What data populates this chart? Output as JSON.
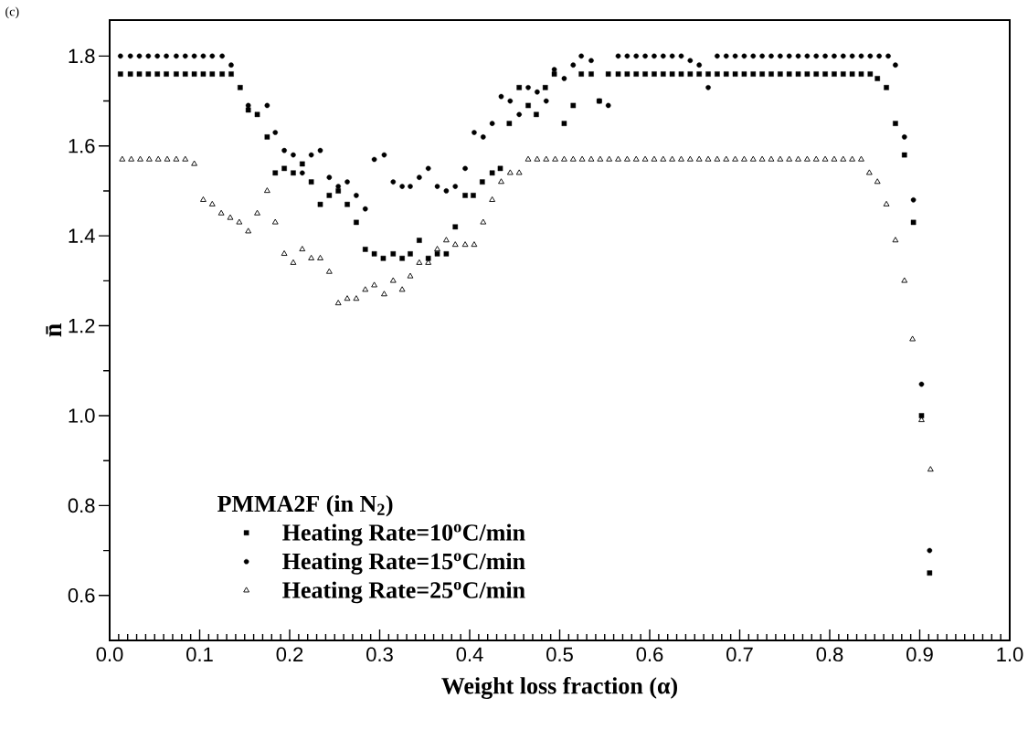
{
  "chart_data": {
    "type": "scatter",
    "xlabel": "Weight loss fraction (α)",
    "ylabel": "n̄",
    "legend_title": "PMMA2F (in N$_{2}$)",
    "legend": "bottom left",
    "annotations": [
      "(c)"
    ],
    "xlim": [
      0,
      1.0
    ],
    "ylim": [
      0.5,
      1.88
    ],
    "xticks": [
      {
        "value": 0,
        "label": "0.0"
      },
      0.1,
      0.2,
      0.3,
      0.4,
      0.5,
      0.6,
      0.7,
      0.8,
      0.9,
      {
        "value": 1.0,
        "label": "1.0"
      }
    ],
    "yticks": [
      0.6,
      0.8,
      {
        "value": 1.0,
        "label": "1.0"
      },
      1.2,
      1.4,
      1.6,
      1.8
    ],
    "series": [
      {
        "name": "Heating Rate=10$^{o}$C/min",
        "color": "#000000",
        "marker": "square",
        "x": [
          0.012,
          0.023,
          0.033,
          0.043,
          0.053,
          0.063,
          0.074,
          0.084,
          0.094,
          0.104,
          0.114,
          0.125,
          0.135,
          0.145,
          0.154,
          0.164,
          0.175,
          0.184,
          0.194,
          0.204,
          0.214,
          0.224,
          0.234,
          0.244,
          0.254,
          0.264,
          0.274,
          0.284,
          0.294,
          0.304,
          0.315,
          0.325,
          0.334,
          0.344,
          0.354,
          0.364,
          0.374,
          0.384,
          0.395,
          0.404,
          0.414,
          0.425,
          0.434,
          0.444,
          0.455,
          0.465,
          0.474,
          0.484,
          0.494,
          0.505,
          0.515,
          0.524,
          0.535,
          0.544,
          0.554,
          0.565,
          0.575,
          0.585,
          0.595,
          0.605,
          0.615,
          0.625,
          0.635,
          0.645,
          0.655,
          0.665,
          0.675,
          0.685,
          0.695,
          0.705,
          0.715,
          0.725,
          0.735,
          0.745,
          0.755,
          0.765,
          0.775,
          0.785,
          0.795,
          0.805,
          0.815,
          0.825,
          0.835,
          0.845,
          0.853,
          0.863,
          0.873,
          0.883,
          0.893,
          0.902,
          0.911
        ],
        "values": [
          1.76,
          1.76,
          1.76,
          1.76,
          1.76,
          1.76,
          1.76,
          1.76,
          1.76,
          1.76,
          1.76,
          1.76,
          1.76,
          1.73,
          1.68,
          1.67,
          1.62,
          1.54,
          1.55,
          1.54,
          1.56,
          1.52,
          1.47,
          1.49,
          1.5,
          1.47,
          1.43,
          1.37,
          1.36,
          1.35,
          1.36,
          1.35,
          1.36,
          1.39,
          1.35,
          1.36,
          1.36,
          1.42,
          1.49,
          1.49,
          1.52,
          1.54,
          1.55,
          1.65,
          1.73,
          1.69,
          1.67,
          1.73,
          1.76,
          1.65,
          1.69,
          1.76,
          1.76,
          1.7,
          1.76,
          1.76,
          1.76,
          1.76,
          1.76,
          1.76,
          1.76,
          1.76,
          1.76,
          1.76,
          1.76,
          1.76,
          1.76,
          1.76,
          1.76,
          1.76,
          1.76,
          1.76,
          1.76,
          1.76,
          1.76,
          1.76,
          1.76,
          1.76,
          1.76,
          1.76,
          1.76,
          1.76,
          1.76,
          1.76,
          1.75,
          1.73,
          1.65,
          1.58,
          1.43,
          1.0,
          0.65
        ]
      },
      {
        "name": "Heating Rate=15$^{o}$C/min",
        "color": "#000000",
        "marker": "circle",
        "x": [
          0.012,
          0.023,
          0.033,
          0.043,
          0.053,
          0.063,
          0.074,
          0.084,
          0.094,
          0.104,
          0.114,
          0.125,
          0.135,
          0.154,
          0.175,
          0.184,
          0.194,
          0.204,
          0.214,
          0.224,
          0.234,
          0.244,
          0.254,
          0.264,
          0.274,
          0.284,
          0.294,
          0.305,
          0.315,
          0.325,
          0.334,
          0.344,
          0.354,
          0.364,
          0.374,
          0.384,
          0.395,
          0.405,
          0.415,
          0.425,
          0.435,
          0.445,
          0.455,
          0.465,
          0.475,
          0.485,
          0.494,
          0.505,
          0.515,
          0.524,
          0.535,
          0.544,
          0.554,
          0.565,
          0.575,
          0.585,
          0.595,
          0.605,
          0.615,
          0.625,
          0.635,
          0.645,
          0.655,
          0.665,
          0.675,
          0.685,
          0.695,
          0.705,
          0.715,
          0.725,
          0.735,
          0.745,
          0.755,
          0.765,
          0.775,
          0.785,
          0.795,
          0.805,
          0.815,
          0.825,
          0.835,
          0.845,
          0.855,
          0.865,
          0.873,
          0.883,
          0.893,
          0.902,
          0.911
        ],
        "values": [
          1.8,
          1.8,
          1.8,
          1.8,
          1.8,
          1.8,
          1.8,
          1.8,
          1.8,
          1.8,
          1.8,
          1.8,
          1.78,
          1.69,
          1.69,
          1.63,
          1.59,
          1.58,
          1.54,
          1.58,
          1.59,
          1.53,
          1.51,
          1.52,
          1.49,
          1.46,
          1.57,
          1.58,
          1.52,
          1.51,
          1.51,
          1.53,
          1.55,
          1.51,
          1.5,
          1.51,
          1.55,
          1.63,
          1.62,
          1.65,
          1.71,
          1.7,
          1.67,
          1.73,
          1.72,
          1.7,
          1.77,
          1.75,
          1.78,
          1.8,
          1.79,
          1.7,
          1.69,
          1.8,
          1.8,
          1.8,
          1.8,
          1.8,
          1.8,
          1.8,
          1.8,
          1.79,
          1.78,
          1.73,
          1.8,
          1.8,
          1.8,
          1.8,
          1.8,
          1.8,
          1.8,
          1.8,
          1.8,
          1.8,
          1.8,
          1.8,
          1.8,
          1.8,
          1.8,
          1.8,
          1.8,
          1.8,
          1.8,
          1.8,
          1.78,
          1.62,
          1.48,
          1.07,
          0.7
        ]
      },
      {
        "name": "Heating Rate=25$^{o}$C/min",
        "color": "#000000",
        "marker": "triangle",
        "x": [
          0.014,
          0.024,
          0.034,
          0.044,
          0.054,
          0.064,
          0.074,
          0.084,
          0.094,
          0.104,
          0.114,
          0.124,
          0.134,
          0.144,
          0.154,
          0.164,
          0.175,
          0.184,
          0.194,
          0.204,
          0.214,
          0.224,
          0.234,
          0.244,
          0.254,
          0.264,
          0.274,
          0.284,
          0.294,
          0.305,
          0.315,
          0.325,
          0.334,
          0.344,
          0.354,
          0.364,
          0.374,
          0.384,
          0.395,
          0.405,
          0.415,
          0.425,
          0.435,
          0.445,
          0.455,
          0.465,
          0.475,
          0.485,
          0.495,
          0.505,
          0.515,
          0.525,
          0.535,
          0.545,
          0.555,
          0.565,
          0.575,
          0.585,
          0.595,
          0.605,
          0.615,
          0.625,
          0.635,
          0.645,
          0.655,
          0.665,
          0.675,
          0.685,
          0.695,
          0.705,
          0.715,
          0.725,
          0.735,
          0.745,
          0.755,
          0.765,
          0.775,
          0.785,
          0.795,
          0.805,
          0.815,
          0.825,
          0.835,
          0.844,
          0.853,
          0.863,
          0.873,
          0.883,
          0.892,
          0.902,
          0.912
        ],
        "values": [
          1.57,
          1.57,
          1.57,
          1.57,
          1.57,
          1.57,
          1.57,
          1.57,
          1.56,
          1.48,
          1.47,
          1.45,
          1.44,
          1.43,
          1.41,
          1.45,
          1.5,
          1.43,
          1.36,
          1.34,
          1.37,
          1.35,
          1.35,
          1.32,
          1.25,
          1.26,
          1.26,
          1.28,
          1.29,
          1.27,
          1.3,
          1.28,
          1.31,
          1.34,
          1.34,
          1.37,
          1.39,
          1.38,
          1.38,
          1.38,
          1.43,
          1.48,
          1.52,
          1.54,
          1.54,
          1.57,
          1.57,
          1.57,
          1.57,
          1.57,
          1.57,
          1.57,
          1.57,
          1.57,
          1.57,
          1.57,
          1.57,
          1.57,
          1.57,
          1.57,
          1.57,
          1.57,
          1.57,
          1.57,
          1.57,
          1.57,
          1.57,
          1.57,
          1.57,
          1.57,
          1.57,
          1.57,
          1.57,
          1.57,
          1.57,
          1.57,
          1.57,
          1.57,
          1.57,
          1.57,
          1.57,
          1.57,
          1.57,
          1.54,
          1.52,
          1.47,
          1.39,
          1.3,
          1.17,
          0.99,
          0.88
        ]
      }
    ]
  }
}
